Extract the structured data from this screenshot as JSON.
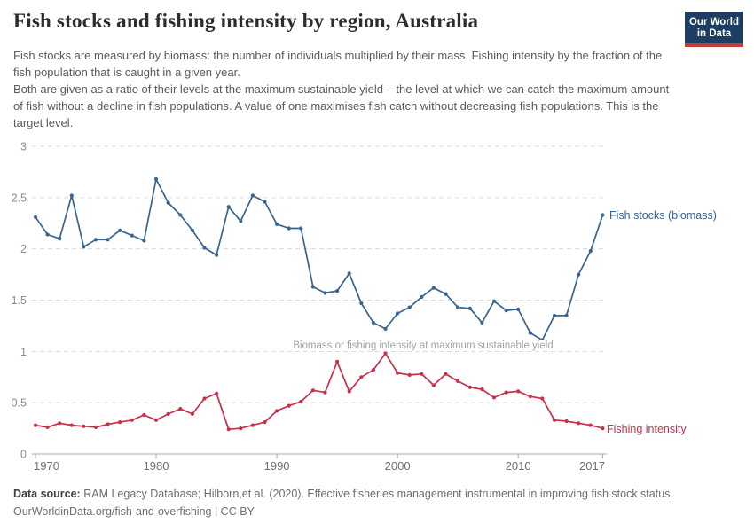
{
  "header": {
    "title": "Fish stocks and fishing intensity by region, Australia",
    "subtitle_paragraphs": [
      "Fish stocks are measured by biomass: the number of individuals multiplied by their mass. Fishing intensity by the fraction of the fish population that is caught in a given year.",
      "Both are given as a ratio of their levels at the maximum sustainable yield – the level at which we can catch the maximum amount of fish without a decline in fish populations. A value of one maximises fish catch without decreasing fish populations. This is the target level."
    ],
    "logo": {
      "line1": "Our World",
      "line2": "in Data",
      "bg_color": "#1d3d63",
      "stripe_color": "#c23d33"
    }
  },
  "chart_data": {
    "type": "line",
    "title": "Fish stocks and fishing intensity by region, Australia",
    "x": [
      1970,
      1971,
      1972,
      1973,
      1974,
      1975,
      1976,
      1977,
      1978,
      1979,
      1980,
      1981,
      1982,
      1983,
      1984,
      1985,
      1986,
      1987,
      1988,
      1989,
      1990,
      1991,
      1992,
      1993,
      1994,
      1995,
      1996,
      1997,
      1998,
      1999,
      2000,
      2001,
      2002,
      2003,
      2004,
      2005,
      2006,
      2007,
      2008,
      2009,
      2010,
      2011,
      2012,
      2013,
      2014,
      2015,
      2016,
      2017
    ],
    "series": [
      {
        "name": "Fish stocks (biomass)",
        "color": "#38648f",
        "values": [
          2.31,
          2.14,
          2.1,
          2.52,
          2.02,
          2.09,
          2.09,
          2.18,
          2.13,
          2.08,
          2.68,
          2.45,
          2.33,
          2.18,
          2.01,
          1.94,
          2.41,
          2.27,
          2.52,
          2.46,
          2.24,
          2.2,
          2.2,
          1.63,
          1.57,
          1.59,
          1.76,
          1.47,
          1.28,
          1.22,
          1.37,
          1.43,
          1.53,
          1.62,
          1.56,
          1.43,
          1.42,
          1.28,
          1.49,
          1.4,
          1.41,
          1.18,
          1.11,
          1.35,
          1.35,
          1.75,
          1.98,
          2.33
        ]
      },
      {
        "name": "Fishing intensity",
        "color": "#c8304a",
        "values": [
          0.28,
          0.26,
          0.3,
          0.28,
          0.27,
          0.26,
          0.29,
          0.31,
          0.33,
          0.38,
          0.33,
          0.39,
          0.44,
          0.39,
          0.54,
          0.59,
          0.24,
          0.25,
          0.28,
          0.31,
          0.42,
          0.47,
          0.51,
          0.62,
          0.6,
          0.9,
          0.61,
          0.75,
          0.82,
          0.98,
          0.79,
          0.77,
          0.78,
          0.67,
          0.78,
          0.71,
          0.65,
          0.63,
          0.55,
          0.6,
          0.61,
          0.56,
          0.54,
          0.33,
          0.32,
          0.3,
          0.28,
          0.25
        ]
      }
    ],
    "ylim": [
      0,
      3
    ],
    "yticks": [
      0,
      0.5,
      1,
      1.5,
      2,
      2.5,
      3
    ],
    "ytick_labels": [
      "0",
      "0.5",
      "1",
      "1.5",
      "2",
      "2.5",
      "3"
    ],
    "xticks": [
      1970,
      1980,
      1990,
      2000,
      2010,
      2017
    ],
    "grid": "horizontal-dashed",
    "legend_position": "end-of-line",
    "annotation": {
      "text": "Biomass or fishing intensity at maximum sustainable yield",
      "at_value": 1
    }
  },
  "footer": {
    "source_label": "Data source:",
    "source_text": " RAM Legacy Database; Hilborn,et al. (2020). Effective fisheries management instrumental in improving fish stock status.",
    "license_line": "OurWorldinData.org/fish-and-overfishing | CC BY"
  }
}
